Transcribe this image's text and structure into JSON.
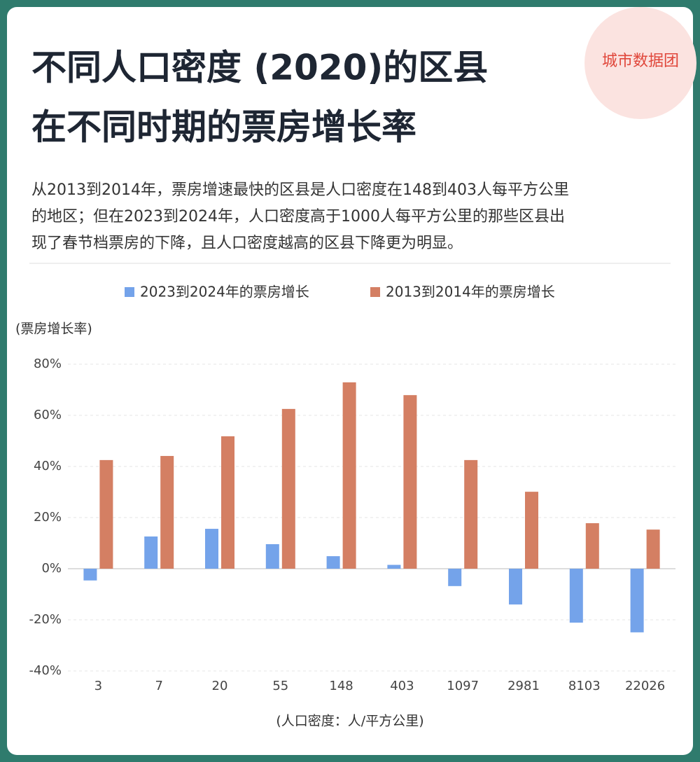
{
  "watermark": "城市数据团",
  "chart_data": {
    "type": "bar",
    "title": [
      "不同人口密度 (2020)的区县",
      "在不同时期的票房增长率"
    ],
    "subtitle": [
      "从2013到2014年，票房增速最快的区县是人口密度在148到403人每平方公里",
      "的地区；但在2023到2024年，人口密度高于1000人每平方公里的那些区县出",
      "现了春节档票房的下降，且人口密度越高的区县下降更为明显。"
    ],
    "y_label": "(票房增长率)",
    "x_label": "(人口密度：人/平方公里)",
    "categories": [
      "3",
      "7",
      "20",
      "55",
      "148",
      "403",
      "1097",
      "2981",
      "8103",
      "22026"
    ],
    "series": [
      {
        "name": "2023到2024年的票房增长",
        "color": "#74a3ea",
        "values": [
          -4.6,
          12.6,
          15.6,
          9.6,
          4.9,
          1.5,
          -6.8,
          -14,
          -21.1,
          -24.9
        ]
      },
      {
        "name": "2013到2014年的票房增长",
        "color": "#d47f63",
        "values": [
          42.5,
          44.1,
          51.8,
          62.5,
          72.9,
          67.9,
          42.5,
          30.1,
          17.8,
          15.3
        ]
      }
    ],
    "ylim": [
      -40,
      80
    ],
    "yticks": [
      {
        "value": -40,
        "label": "-40%"
      },
      {
        "value": -20,
        "label": "-20%"
      },
      {
        "value": 0,
        "label": "0%"
      },
      {
        "value": 20,
        "label": "20%"
      },
      {
        "value": 40,
        "label": "40%"
      },
      {
        "value": 60,
        "label": "60%"
      },
      {
        "value": 80,
        "label": "80%"
      }
    ],
    "grid": true,
    "legend": "top"
  }
}
